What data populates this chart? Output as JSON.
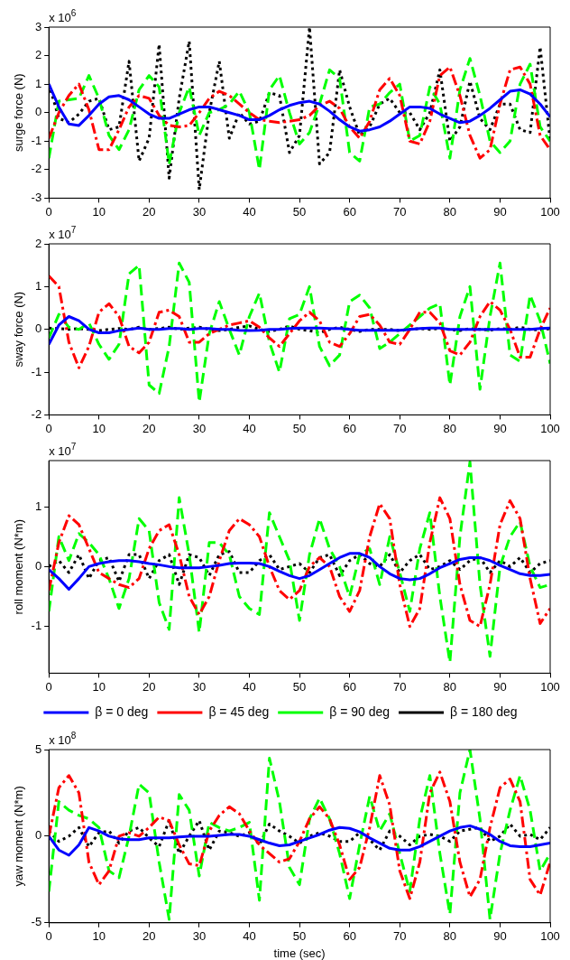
{
  "chart_data": [
    {
      "type": "line",
      "ylabel": "surge force (N)",
      "annotations": [
        "x 10$^{6}$"
      ],
      "x": [
        0,
        2,
        4,
        6,
        8,
        10,
        12,
        14,
        16,
        18,
        20,
        22,
        24,
        26,
        28,
        30,
        32,
        34,
        36,
        38,
        40,
        42,
        44,
        46,
        48,
        50,
        52,
        54,
        56,
        58,
        60,
        62,
        64,
        66,
        68,
        70,
        72,
        74,
        76,
        78,
        80,
        82,
        84,
        86,
        88,
        90,
        92,
        94,
        96,
        98,
        100
      ],
      "xlim": [
        0,
        100
      ],
      "xticks": [
        0,
        10,
        20,
        30,
        40,
        50,
        60,
        70,
        80,
        90,
        100
      ],
      "ylim": [
        -3,
        3
      ],
      "yticks": [
        -3,
        -2,
        -1,
        0,
        1,
        2,
        3
      ],
      "grid": false,
      "legend": false,
      "marker": "none",
      "series": [
        {
          "color": "#0000ff",
          "line_style": "solid",
          "values": [
            1.0,
            0.2,
            -0.4,
            -0.45,
            -0.1,
            0.3,
            0.55,
            0.6,
            0.45,
            0.2,
            -0.05,
            -0.2,
            -0.2,
            -0.05,
            0.1,
            0.2,
            0.2,
            0.1,
            0.0,
            -0.1,
            -0.25,
            -0.25,
            -0.1,
            0.1,
            0.25,
            0.35,
            0.4,
            0.3,
            0.05,
            -0.25,
            -0.5,
            -0.65,
            -0.6,
            -0.5,
            -0.3,
            -0.05,
            0.2,
            0.2,
            0.15,
            -0.05,
            -0.2,
            -0.35,
            -0.3,
            -0.1,
            0.15,
            0.45,
            0.75,
            0.8,
            0.65,
            0.3,
            -0.15
          ]
        },
        {
          "color": "#ff0000",
          "line_style": "dashdot",
          "values": [
            -0.9,
            0.0,
            0.6,
            1.0,
            0.1,
            -1.3,
            -1.3,
            -0.6,
            0.2,
            0.6,
            0.5,
            -0.1,
            -0.45,
            -0.5,
            -0.45,
            0.0,
            0.5,
            0.75,
            0.6,
            0.3,
            0.0,
            -0.25,
            -0.3,
            -0.35,
            -0.3,
            -0.25,
            -0.1,
            0.25,
            0.4,
            0.15,
            -0.5,
            -0.9,
            -0.3,
            0.8,
            1.2,
            0.6,
            -1.0,
            -1.1,
            -0.3,
            1.3,
            1.6,
            0.6,
            -0.8,
            -1.6,
            -1.3,
            0.3,
            1.5,
            1.6,
            1.0,
            -0.8,
            -1.3
          ]
        },
        {
          "color": "#00ff00",
          "line_style": "dashed",
          "values": [
            -1.6,
            0.4,
            0.45,
            0.5,
            1.3,
            0.5,
            -0.8,
            -1.3,
            -0.6,
            0.8,
            1.3,
            0.9,
            -1.8,
            0.0,
            0.9,
            -0.8,
            0.0,
            0.1,
            0.3,
            0.75,
            0.0,
            -2.0,
            0.8,
            1.3,
            0.0,
            -1.1,
            -0.7,
            0.3,
            1.5,
            1.2,
            -1.4,
            -1.7,
            0.2,
            0.3,
            0.7,
            1.0,
            -1.0,
            -0.8,
            0.9,
            0.3,
            -1.6,
            0.8,
            1.9,
            0.6,
            -1.0,
            -1.4,
            -1.0,
            1.0,
            1.7,
            -0.5,
            -1.0
          ]
        },
        {
          "color": "#000000",
          "line_style": "dotted",
          "values": [
            1.0,
            -0.2,
            -0.35,
            -0.05,
            0.4,
            0.5,
            -0.6,
            -0.5,
            1.8,
            -1.7,
            -0.9,
            2.4,
            -2.3,
            0.5,
            2.5,
            -2.7,
            0.0,
            1.8,
            -0.9,
            0.0,
            -0.4,
            -0.3,
            0.7,
            0.6,
            -1.4,
            -0.8,
            3.0,
            -1.8,
            -1.4,
            1.5,
            0.2,
            -0.8,
            -0.5,
            0.3,
            0.5,
            0.0,
            0.0,
            -0.6,
            0.0,
            1.5,
            -1.0,
            -0.5,
            1.1,
            -0.2,
            -0.6,
            0.3,
            0.3,
            -0.6,
            -0.7,
            2.3,
            -1.0
          ]
        }
      ]
    },
    {
      "type": "line",
      "ylabel": "sway force (N)",
      "annotations": [
        "x 10$^{7}$"
      ],
      "x": [
        0,
        2,
        4,
        6,
        8,
        10,
        12,
        14,
        16,
        18,
        20,
        22,
        24,
        26,
        28,
        30,
        32,
        34,
        36,
        38,
        40,
        42,
        44,
        46,
        48,
        50,
        52,
        54,
        56,
        58,
        60,
        62,
        64,
        66,
        68,
        70,
        72,
        74,
        76,
        78,
        80,
        82,
        84,
        86,
        88,
        90,
        92,
        94,
        96,
        98,
        100
      ],
      "xlim": [
        0,
        100
      ],
      "xticks": [
        0,
        10,
        20,
        30,
        40,
        50,
        60,
        70,
        80,
        90,
        100
      ],
      "ylim": [
        -2,
        2
      ],
      "yticks": [
        -2,
        -1,
        0,
        1,
        2
      ],
      "grid": false,
      "legend": false,
      "marker": "none",
      "series": [
        {
          "color": "#0000ff",
          "line_style": "solid",
          "values": [
            -0.35,
            0.1,
            0.3,
            0.2,
            0.0,
            -0.08,
            -0.08,
            -0.03,
            0.0,
            0.03,
            0.0,
            0.0,
            0.02,
            0.02,
            0.0,
            0.02,
            0.02,
            0.0,
            0.0,
            -0.02,
            -0.03,
            -0.02,
            0.0,
            0.0,
            0.02,
            0.03,
            0.03,
            0.03,
            0.02,
            0.02,
            0.0,
            -0.02,
            -0.02,
            -0.02,
            -0.02,
            -0.02,
            0.0,
            0.02,
            0.03,
            0.03,
            0.0,
            0.0,
            0.0,
            0.0,
            0.0,
            0.0,
            0.0,
            0.0,
            0.0,
            0.02,
            0.03
          ]
        },
        {
          "color": "#ff0000",
          "line_style": "dashdot",
          "values": [
            1.25,
            1.0,
            -0.3,
            -0.9,
            -0.4,
            0.4,
            0.6,
            0.3,
            -0.4,
            -0.55,
            -0.3,
            0.4,
            0.45,
            0.3,
            -0.3,
            -0.3,
            -0.1,
            0.0,
            0.1,
            0.15,
            0.2,
            0.05,
            -0.2,
            -0.4,
            -0.1,
            0.2,
            0.4,
            0.2,
            -0.3,
            -0.4,
            -0.1,
            0.3,
            0.35,
            0.1,
            -0.3,
            -0.35,
            0.0,
            0.4,
            0.4,
            0.15,
            -0.5,
            -0.6,
            -0.3,
            0.3,
            0.65,
            0.45,
            0.0,
            -0.65,
            -0.65,
            0.0,
            0.5
          ]
        },
        {
          "color": "#00ff00",
          "line_style": "dashed",
          "values": [
            -0.2,
            0.35,
            0.05,
            0.0,
            0.15,
            -0.35,
            -0.7,
            -0.35,
            1.3,
            1.5,
            -1.3,
            -1.5,
            -0.4,
            1.55,
            1.1,
            -1.7,
            -0.1,
            0.65,
            0.0,
            -0.6,
            0.3,
            0.85,
            -0.3,
            -1.0,
            0.25,
            0.35,
            1.0,
            -0.4,
            -0.85,
            -0.6,
            0.65,
            0.8,
            0.5,
            -0.45,
            -0.3,
            -0.1,
            0.1,
            0.3,
            0.5,
            0.6,
            -1.3,
            0.3,
            1.0,
            -1.4,
            0.3,
            1.55,
            -0.6,
            -0.75,
            0.8,
            0.2,
            -0.8
          ]
        },
        {
          "color": "#000000",
          "line_style": "dotted",
          "values": [
            0.03,
            0.02,
            0.0,
            0.02,
            0.0,
            -0.03,
            0.0,
            0.02,
            0.0,
            0.05,
            0.0,
            0.02,
            0.05,
            0.0,
            0.03,
            0.05,
            0.0,
            -0.03,
            0.0,
            0.05,
            0.08,
            0.0,
            -0.05,
            0.0,
            0.08,
            0.0,
            -0.03,
            -0.08,
            0.0,
            0.05,
            0.0,
            -0.05,
            0.0,
            0.0,
            0.0,
            -0.03,
            0.0,
            0.02,
            0.0,
            0.02,
            0.0,
            -0.03,
            0.02,
            0.0,
            -0.02,
            0.02,
            0.0,
            0.05,
            0.0,
            -0.02,
            0.02
          ]
        }
      ]
    },
    {
      "type": "line",
      "ylabel": "roll moment (N*m)",
      "annotations": [
        "x 10$^{7}$"
      ],
      "x": [
        0,
        2,
        4,
        6,
        8,
        10,
        12,
        14,
        16,
        18,
        20,
        22,
        24,
        26,
        28,
        30,
        32,
        34,
        36,
        38,
        40,
        42,
        44,
        46,
        48,
        50,
        52,
        54,
        56,
        58,
        60,
        62,
        64,
        66,
        68,
        70,
        72,
        74,
        76,
        78,
        80,
        82,
        84,
        86,
        88,
        90,
        92,
        94,
        96,
        98,
        100
      ],
      "xlim": [
        0,
        100
      ],
      "xticks": [
        0,
        10,
        20,
        30,
        40,
        50,
        60,
        70,
        80,
        90,
        100
      ],
      "ylim": [
        -1.78,
        1.77
      ],
      "yticks": [
        -1,
        0,
        1
      ],
      "grid": false,
      "legend": "bottom",
      "marker": "none",
      "series": [
        {
          "name": "β = 0 deg",
          "color": "#0000ff",
          "line_style": "solid",
          "values": [
            -0.05,
            -0.2,
            -0.38,
            -0.2,
            0.0,
            0.05,
            0.08,
            0.1,
            0.1,
            0.08,
            0.05,
            0.03,
            0.0,
            -0.02,
            -0.02,
            -0.02,
            0.0,
            0.02,
            0.05,
            0.06,
            0.06,
            0.05,
            0.0,
            -0.08,
            -0.15,
            -0.2,
            -0.15,
            -0.05,
            0.05,
            0.15,
            0.22,
            0.22,
            0.15,
            0.0,
            -0.12,
            -0.2,
            -0.22,
            -0.2,
            -0.12,
            -0.02,
            0.05,
            0.12,
            0.15,
            0.15,
            0.1,
            0.02,
            -0.05,
            -0.12,
            -0.15,
            -0.15,
            -0.13
          ]
        },
        {
          "name": "β = 45 deg",
          "color": "#ff0000",
          "line_style": "dashdot",
          "values": [
            -0.4,
            0.4,
            0.85,
            0.7,
            0.3,
            -0.1,
            -0.2,
            -0.3,
            -0.35,
            -0.2,
            0.3,
            0.6,
            0.7,
            0.2,
            -0.5,
            -0.8,
            -0.5,
            0.1,
            0.6,
            0.8,
            0.7,
            0.5,
            0.0,
            -0.4,
            -0.55,
            -0.4,
            0.0,
            0.15,
            0.0,
            -0.5,
            -0.75,
            -0.4,
            0.5,
            1.05,
            0.8,
            -0.3,
            -1.0,
            -0.7,
            0.4,
            1.15,
            0.8,
            -0.3,
            -0.9,
            -1.0,
            -0.3,
            0.7,
            1.1,
            0.8,
            -0.2,
            -0.95,
            -0.7
          ]
        },
        {
          "name": "β = 90 deg",
          "color": "#00ff00",
          "line_style": "dashed",
          "values": [
            -0.75,
            0.5,
            0.1,
            0.55,
            0.4,
            0.2,
            -0.2,
            -0.7,
            -0.2,
            0.8,
            0.6,
            -0.6,
            -1.05,
            1.15,
            0.2,
            -1.1,
            0.4,
            0.4,
            0.2,
            -0.5,
            -0.7,
            -0.8,
            0.9,
            0.5,
            0.1,
            -0.9,
            0.2,
            0.8,
            0.3,
            0.0,
            -0.5,
            0.2,
            0.3,
            -0.3,
            0.5,
            -0.1,
            -0.75,
            0.3,
            0.9,
            -0.5,
            -1.6,
            0.5,
            1.75,
            -0.3,
            -1.5,
            0.0,
            0.5,
            0.75,
            0.0,
            -0.35,
            -0.3
          ]
        },
        {
          "name": "β = 180 deg",
          "color": "#000000",
          "line_style": "dotted",
          "values": [
            0.0,
            0.1,
            -0.1,
            0.2,
            -0.2,
            0.1,
            0.15,
            -0.25,
            0.2,
            0.2,
            -0.2,
            0.1,
            0.2,
            -0.3,
            0.2,
            0.15,
            -0.15,
            0.2,
            0.25,
            -0.1,
            -0.1,
            0.1,
            0.2,
            -0.05,
            0.0,
            0.05,
            -0.1,
            0.15,
            0.2,
            -0.15,
            0.1,
            0.2,
            0.05,
            0.0,
            0.2,
            -0.1,
            0.1,
            0.2,
            -0.05,
            0.0,
            0.1,
            -0.05,
            0.1,
            0.15,
            -0.1,
            0.1,
            0.0,
            0.15,
            -0.1,
            0.05,
            0.1
          ]
        }
      ]
    },
    {
      "type": "line",
      "xlabel": "time (sec)",
      "ylabel": "yaw moment (N*m)",
      "annotations": [
        "x 10$^{8}$"
      ],
      "x": [
        0,
        2,
        4,
        6,
        8,
        10,
        12,
        14,
        16,
        18,
        20,
        22,
        24,
        26,
        28,
        30,
        32,
        34,
        36,
        38,
        40,
        42,
        44,
        46,
        48,
        50,
        52,
        54,
        56,
        58,
        60,
        62,
        64,
        66,
        68,
        70,
        72,
        74,
        76,
        78,
        80,
        82,
        84,
        86,
        88,
        90,
        92,
        94,
        96,
        98,
        100
      ],
      "xlim": [
        0,
        100
      ],
      "xticks": [
        0,
        10,
        20,
        30,
        40,
        50,
        60,
        70,
        80,
        90,
        100
      ],
      "ylim": [
        -5,
        5
      ],
      "yticks": [
        -5,
        0,
        5
      ],
      "grid": false,
      "legend": false,
      "marker": "none",
      "series": [
        {
          "color": "#0000ff",
          "line_style": "solid",
          "values": [
            0.0,
            -0.8,
            -1.1,
            -0.5,
            0.5,
            0.3,
            0.0,
            -0.15,
            -0.2,
            -0.2,
            -0.1,
            -0.1,
            -0.1,
            -0.05,
            0.0,
            0.0,
            0.0,
            0.05,
            0.1,
            0.1,
            0.0,
            -0.2,
            -0.4,
            -0.55,
            -0.5,
            -0.3,
            -0.1,
            0.1,
            0.35,
            0.5,
            0.45,
            0.25,
            -0.1,
            -0.4,
            -0.7,
            -0.8,
            -0.8,
            -0.6,
            -0.3,
            0.0,
            0.3,
            0.5,
            0.6,
            0.4,
            0.1,
            -0.3,
            -0.55,
            -0.6,
            -0.6,
            -0.5,
            -0.4
          ]
        },
        {
          "color": "#ff0000",
          "line_style": "dashdot",
          "values": [
            0.0,
            2.8,
            3.5,
            2.5,
            -1.5,
            -2.8,
            -2.0,
            0.0,
            0.2,
            0.0,
            0.5,
            1.1,
            0.9,
            -0.5,
            -1.6,
            -1.7,
            0.3,
            1.2,
            1.7,
            1.3,
            0.3,
            -0.5,
            -1.0,
            -1.5,
            -1.3,
            -0.3,
            1.0,
            1.7,
            1.0,
            -0.5,
            -2.5,
            -1.8,
            0.5,
            3.5,
            1.8,
            -2.0,
            -3.6,
            -1.5,
            2.5,
            3.7,
            2.0,
            -1.5,
            -3.5,
            -2.5,
            0.5,
            2.8,
            3.3,
            2.0,
            -2.5,
            -3.4,
            -1.5
          ]
        },
        {
          "color": "#00ff00",
          "line_style": "dashed",
          "values": [
            -3.2,
            2.0,
            1.5,
            1.2,
            1.0,
            0.5,
            -2.0,
            -2.4,
            0.0,
            3.0,
            2.5,
            -1.5,
            -4.8,
            2.4,
            1.5,
            -2.3,
            0.8,
            0.5,
            0.3,
            0.5,
            0.8,
            -3.7,
            4.5,
            2.0,
            -1.8,
            -2.8,
            1.0,
            2.2,
            1.0,
            -1.0,
            -3.6,
            -0.5,
            2.3,
            0.3,
            1.3,
            -1.0,
            -3.2,
            1.0,
            3.5,
            -1.0,
            -4.5,
            2.5,
            5.0,
            1.0,
            -4.8,
            -1.0,
            1.5,
            3.5,
            1.5,
            -2.0,
            -1.0
          ]
        },
        {
          "color": "#000000",
          "line_style": "dotted",
          "values": [
            0.3,
            -0.3,
            0.0,
            0.5,
            -0.6,
            0.2,
            0.3,
            -0.4,
            0.3,
            0.5,
            -0.1,
            -0.6,
            0.9,
            -1.0,
            0.0,
            0.9,
            -0.8,
            0.3,
            0.2,
            0.0,
            0.2,
            -0.5,
            0.7,
            0.3,
            0.0,
            -0.4,
            0.0,
            0.2,
            0.0,
            -0.3,
            -0.3,
            0.2,
            -0.2,
            -0.8,
            0.3,
            0.0,
            -0.5,
            0.0,
            0.1,
            0.0,
            -0.3,
            0.3,
            0.4,
            0.5,
            -0.3,
            0.0,
            0.7,
            0.0,
            0.1,
            -0.2,
            0.5
          ]
        }
      ]
    }
  ]
}
